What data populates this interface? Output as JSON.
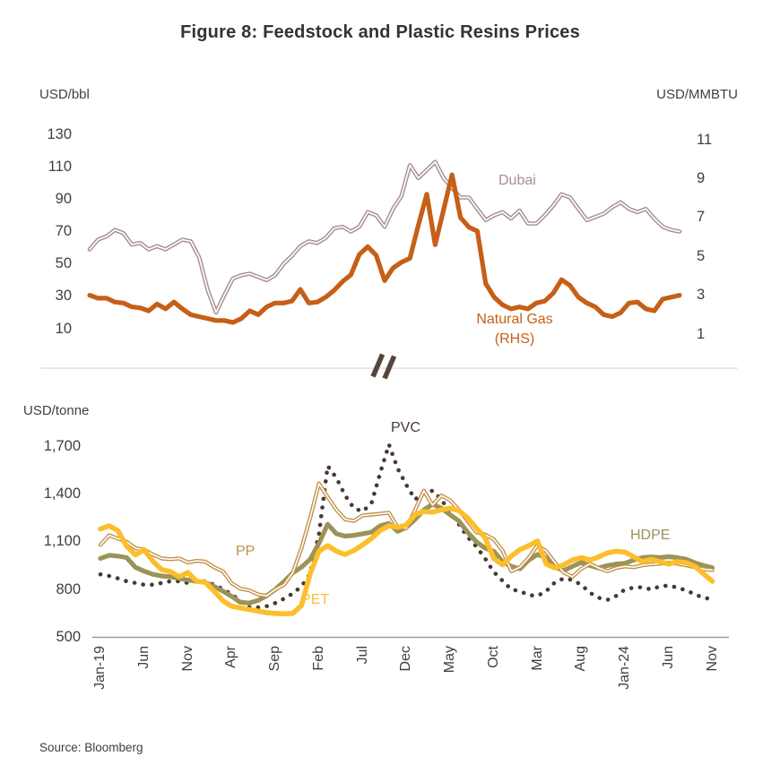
{
  "figure": {
    "title": "Figure 8: Feedstock and Plastic Resins Prices",
    "source": "Source: Bloomberg"
  },
  "annotations": {
    "dubai": "Dubai",
    "natural_gas_line1": "Natural Gas",
    "natural_gas_line2": "(RHS)",
    "pvc": "PVC",
    "pp": "PP",
    "pet": "PET",
    "hdpe": "HDPE"
  },
  "colors": {
    "dubai": "#a78f90",
    "natural_gas": "#c65f17",
    "pvc": "#473a34",
    "pp": "#c2924b",
    "hdpe": "#9c9358",
    "pet": "#fcbe2a",
    "separator_line": "#eae4e1",
    "break_mark": "#55453f",
    "axis_line": "#a09a97",
    "text": "#3f3f3f"
  },
  "chart_data": [
    {
      "type": "line",
      "panel": "top",
      "ylabel_left": "USD/bbl",
      "ylabel_right": "USD/MMBTU",
      "x_unit": "monthly, Jan-2019 to Nov-2024",
      "n_points": 71,
      "x_ticks_shown": false,
      "grid": false,
      "left_axis": {
        "min": 10,
        "max": 130,
        "ticks": [
          130,
          110,
          90,
          70,
          50,
          30,
          10
        ]
      },
      "right_axis": {
        "min": 1,
        "max": 11,
        "ticks": [
          11,
          9,
          7,
          5,
          3,
          1
        ]
      },
      "series": [
        {
          "name": "Dubai",
          "axis": "left",
          "style": "double-line",
          "color": "#a78f90",
          "values": [
            59,
            65,
            67,
            71,
            69,
            62,
            63,
            59,
            61,
            59,
            62,
            65,
            64,
            54,
            34,
            20,
            31,
            41,
            43,
            44,
            42,
            40,
            43,
            50,
            55,
            61,
            64,
            63,
            66,
            72,
            73,
            70,
            73,
            82,
            80,
            73,
            84,
            92,
            111,
            103,
            108,
            113,
            103,
            97,
            91,
            91,
            84,
            77,
            80,
            82,
            78,
            83,
            75,
            75,
            80,
            86,
            93,
            91,
            84,
            77,
            79,
            81,
            85,
            88,
            84,
            82,
            84,
            78,
            73,
            71,
            70
          ]
        },
        {
          "name": "Natural Gas (RHS)",
          "axis": "right",
          "style": "solid",
          "color": "#c65f17",
          "values": [
            3.0,
            2.85,
            2.85,
            2.65,
            2.6,
            2.4,
            2.35,
            2.2,
            2.55,
            2.3,
            2.65,
            2.3,
            2.0,
            1.9,
            1.8,
            1.7,
            1.7,
            1.6,
            1.8,
            2.2,
            2.0,
            2.4,
            2.6,
            2.6,
            2.7,
            3.3,
            2.6,
            2.65,
            2.9,
            3.25,
            3.7,
            4.05,
            5.1,
            5.5,
            5.05,
            3.75,
            4.4,
            4.7,
            4.9,
            6.6,
            8.2,
            5.6,
            7.4,
            9.2,
            7.0,
            6.5,
            6.3,
            3.6,
            2.9,
            2.5,
            2.3,
            2.4,
            2.3,
            2.6,
            2.7,
            3.1,
            3.8,
            3.5,
            2.9,
            2.6,
            2.4,
            2.0,
            1.9,
            2.1,
            2.6,
            2.65,
            2.3,
            2.2,
            2.8,
            2.9,
            3.0
          ]
        }
      ]
    },
    {
      "type": "line",
      "panel": "bottom",
      "ylabel": "USD/tonne",
      "x_unit": "monthly, Jan-2019 to Nov-2024",
      "n_points": 71,
      "grid": false,
      "y_axis": {
        "min": 500,
        "max": 1700,
        "ticks": [
          1700,
          1400,
          1100,
          800,
          500
        ],
        "tick_labels": [
          "1,700",
          "1,400",
          "1,100",
          "800",
          "500"
        ]
      },
      "x_tick_positions": [
        0,
        5,
        10,
        15,
        20,
        25,
        30,
        35,
        40,
        45,
        50,
        55,
        60,
        65,
        70
      ],
      "x_tick_labels": [
        "Jan-19",
        "Jun",
        "Nov",
        "Apr",
        "Sep",
        "Feb",
        "Jul",
        "Dec",
        "May",
        "Oct",
        "Mar",
        "Aug",
        "Jan-24",
        "Jun",
        "Nov"
      ],
      "series": [
        {
          "name": "PVC",
          "style": "dotted",
          "color": "#473a34",
          "values": [
            895,
            885,
            870,
            852,
            841,
            830,
            830,
            841,
            852,
            852,
            841,
            852,
            852,
            830,
            803,
            770,
            731,
            690,
            688,
            695,
            715,
            742,
            775,
            820,
            900,
            1150,
            1575,
            1500,
            1390,
            1310,
            1290,
            1340,
            1530,
            1710,
            1560,
            1455,
            1365,
            1405,
            1420,
            1365,
            1282,
            1210,
            1130,
            1070,
            995,
            910,
            855,
            800,
            790,
            765,
            760,
            790,
            845,
            870,
            860,
            830,
            780,
            748,
            735,
            760,
            800,
            812,
            815,
            800,
            820,
            825,
            812,
            795,
            770,
            748,
            740
          ]
        },
        {
          "name": "HDPE",
          "style": "solid",
          "color": "#9c9358",
          "values": [
            995,
            1015,
            1010,
            1000,
            940,
            915,
            895,
            885,
            880,
            870,
            860,
            852,
            845,
            820,
            790,
            758,
            720,
            715,
            731,
            760,
            800,
            850,
            905,
            940,
            990,
            1090,
            1210,
            1150,
            1135,
            1140,
            1150,
            1160,
            1200,
            1215,
            1165,
            1190,
            1240,
            1300,
            1335,
            1310,
            1270,
            1230,
            1160,
            1100,
            1060,
            1040,
            975,
            945,
            930,
            985,
            1020,
            1000,
            940,
            920,
            945,
            970,
            950,
            935,
            950,
            960,
            965,
            985,
            1000,
            1005,
            1000,
            1006,
            1000,
            990,
            968,
            950,
            937
          ]
        },
        {
          "name": "PP",
          "style": "double-line",
          "color": "#c2924b",
          "values": [
            1080,
            1140,
            1120,
            1100,
            1060,
            1050,
            1020,
            995,
            990,
            995,
            970,
            980,
            975,
            940,
            915,
            840,
            805,
            795,
            770,
            760,
            800,
            830,
            905,
            1060,
            1250,
            1465,
            1380,
            1300,
            1240,
            1230,
            1265,
            1270,
            1275,
            1282,
            1190,
            1185,
            1300,
            1420,
            1330,
            1390,
            1360,
            1300,
            1230,
            1160,
            1145,
            1115,
            1045,
            915,
            940,
            1000,
            1078,
            1040,
            968,
            907,
            880,
            930,
            962,
            935,
            915,
            935,
            945,
            940,
            952,
            958,
            962,
            968,
            962,
            952,
            940,
            928,
            922
          ]
        },
        {
          "name": "PET",
          "style": "solid",
          "color": "#fcbe2a",
          "values": [
            1180,
            1200,
            1170,
            1072,
            1017,
            1050,
            978,
            925,
            913,
            880,
            907,
            852,
            845,
            790,
            730,
            695,
            685,
            675,
            665,
            655,
            650,
            648,
            650,
            700,
            900,
            1040,
            1075,
            1040,
            1020,
            1045,
            1080,
            1120,
            1170,
            1200,
            1190,
            1205,
            1270,
            1290,
            1285,
            1300,
            1310,
            1295,
            1250,
            1185,
            1125,
            995,
            955,
            1010,
            1050,
            1075,
            1105,
            960,
            935,
            955,
            985,
            1000,
            985,
            1005,
            1030,
            1040,
            1035,
            1005,
            975,
            990,
            975,
            960,
            975,
            968,
            945,
            898,
            852
          ]
        }
      ]
    }
  ]
}
